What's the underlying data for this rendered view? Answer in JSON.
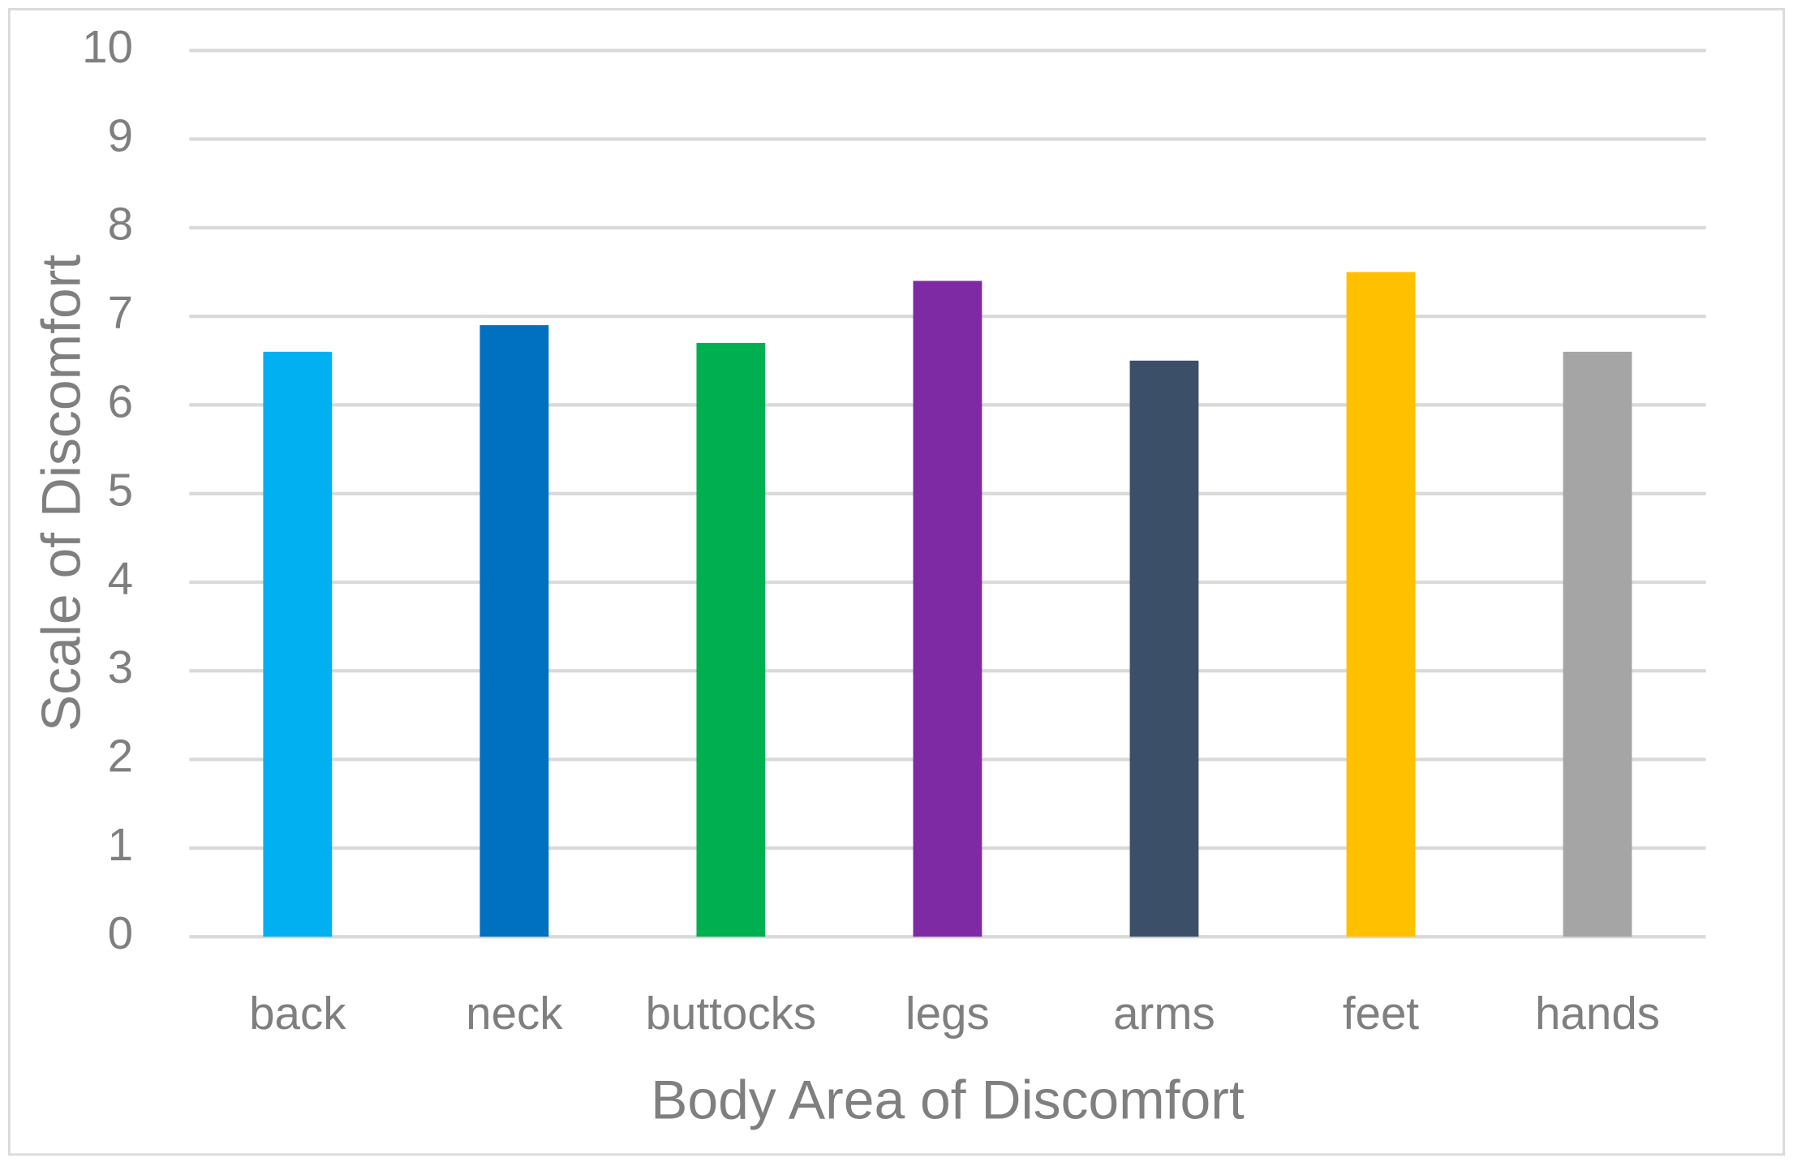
{
  "chart_data": {
    "type": "bar",
    "categories": [
      "back",
      "neck",
      "buttocks",
      "legs",
      "arms",
      "feet",
      "hands"
    ],
    "values": [
      6.6,
      6.9,
      6.7,
      7.4,
      6.5,
      7.5,
      6.6
    ],
    "colors": [
      "#00b0f0",
      "#0070c0",
      "#00b050",
      "#7f2aa5",
      "#3b5068",
      "#ffc000",
      "#a5a5a5"
    ],
    "x_label": "Body Area of Discomfort",
    "y_label": "Scale of Discomfort",
    "ylim": [
      0,
      10
    ],
    "yticks": [
      0,
      1,
      2,
      3,
      4,
      5,
      6,
      7,
      8,
      9,
      10
    ],
    "grid": true
  }
}
